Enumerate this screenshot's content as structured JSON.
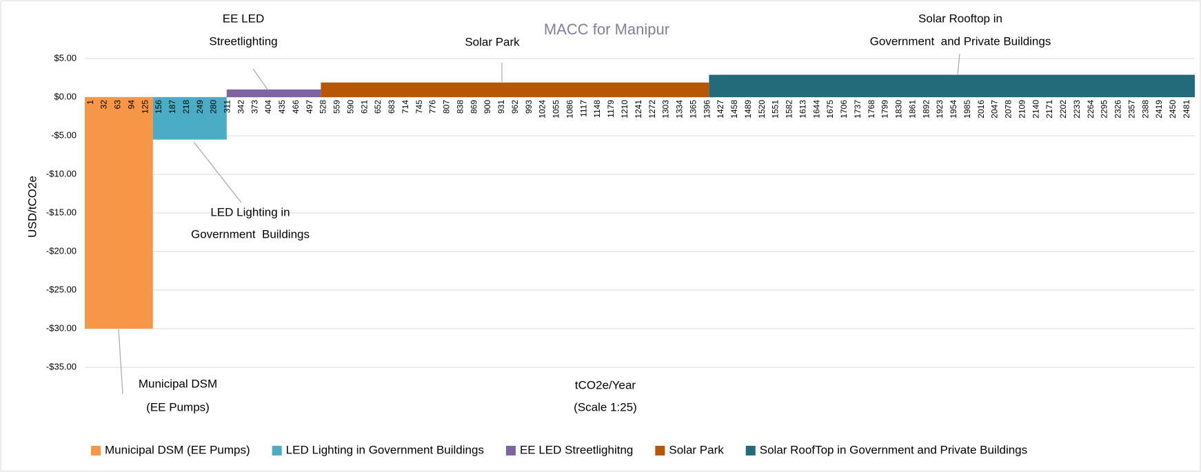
{
  "chart_data": {
    "type": "macc",
    "title": "MACC for Manipur",
    "y_label": "USD/tCO2e",
    "x_label": [
      "tCO2e/Year",
      "(Scale 1:25)"
    ],
    "series": [
      {
        "name": "Municipal DSM (EE Pumps)",
        "color": "#f79646",
        "value": -30,
        "width": 154
      },
      {
        "name": "LED Lighting in Government Buildings",
        "color": "#4bacc6",
        "value": -5.5,
        "width": 167
      },
      {
        "name": "EE LED Streetlighitng",
        "color": "#8064a2",
        "value": 1,
        "width": 213
      },
      {
        "name": "Solar Park",
        "color": "#b65708",
        "value": 1.9,
        "width": 878
      },
      {
        "name": "Solar RoofTop in Government and Private Buildings",
        "color": "#236b7a",
        "value": 2.9,
        "width": 1099
      }
    ],
    "annotations": [
      {
        "series": 0,
        "lines": [
          "Municipal DSM",
          "(EE Pumps)"
        ]
      },
      {
        "series": 1,
        "lines": [
          "LED Lighting in",
          "Government  Buildings"
        ]
      },
      {
        "series": 2,
        "lines": [
          "EE LED",
          "Streetlighting"
        ]
      },
      {
        "series": 3,
        "lines": [
          "Solar Park"
        ]
      },
      {
        "series": 4,
        "lines": [
          "Solar Rooftop in",
          "Government  and Private Buildings"
        ]
      }
    ],
    "xlim": [
      0,
      2511
    ],
    "xticks": [
      1,
      32,
      63,
      94,
      125,
      156,
      187,
      218,
      249,
      280,
      311,
      342,
      373,
      404,
      435,
      466,
      497,
      528,
      559,
      590,
      621,
      652,
      683,
      714,
      745,
      776,
      807,
      838,
      869,
      900,
      931,
      962,
      993,
      1024,
      1055,
      1086,
      1117,
      1148,
      1179,
      1210,
      1241,
      1272,
      1303,
      1334,
      1365,
      1396,
      1427,
      1458,
      1489,
      1520,
      1551,
      1582,
      1613,
      1644,
      1675,
      1706,
      1737,
      1768,
      1799,
      1830,
      1861,
      1892,
      1923,
      1954,
      1985,
      2016,
      2047,
      2078,
      2109,
      2140,
      2171,
      2202,
      2233,
      2264,
      2295,
      2326,
      2357,
      2388,
      2419,
      2450,
      2481
    ],
    "ylim": [
      -35,
      5
    ],
    "yticks": [
      {
        "value": 5,
        "label": "$5.00"
      },
      {
        "value": 0,
        "label": "$0.00"
      },
      {
        "value": -5,
        "label": "-$5.00"
      },
      {
        "value": -10,
        "label": "-$10.00"
      },
      {
        "value": -15,
        "label": "-$15.00"
      },
      {
        "value": -20,
        "label": "-$20.00"
      },
      {
        "value": -25,
        "label": "-$25.00"
      },
      {
        "value": -30,
        "label": "-$30.00"
      },
      {
        "value": -35,
        "label": "-$35.00"
      }
    ],
    "grid": true,
    "legend": "bottom"
  }
}
